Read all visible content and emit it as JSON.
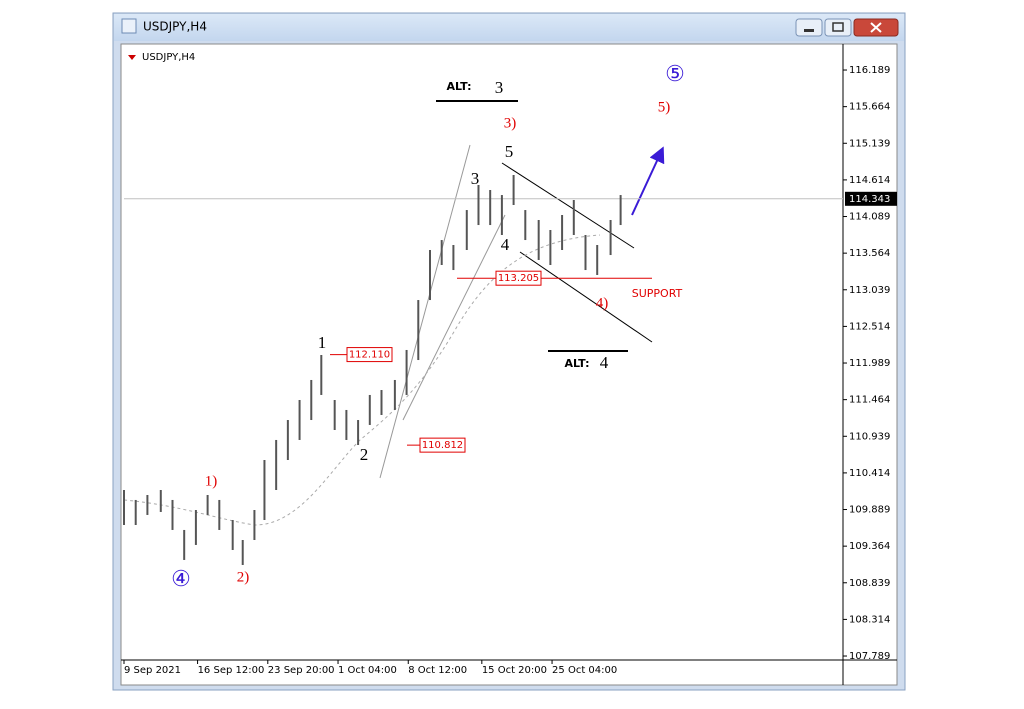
{
  "window_title": "USDJPY,H4",
  "chart_data": {
    "type": "hlbar",
    "title": "USDJPY,H4",
    "x": [
      0,
      7,
      14,
      22,
      29,
      36,
      43,
      50,
      57,
      65,
      71,
      78,
      84,
      91,
      98,
      105,
      112,
      118,
      126,
      133,
      140,
      147,
      154,
      162,
      169,
      176,
      183,
      190,
      197,
      205,
      212,
      219,
      226,
      233,
      240,
      248,
      255,
      262,
      269,
      276,
      283,
      291,
      297
    ],
    "high": [
      110.169,
      110.026,
      110.097,
      110.169,
      110.026,
      109.596,
      109.882,
      110.097,
      110.026,
      109.739,
      109.452,
      109.882,
      110.599,
      110.886,
      111.172,
      111.459,
      111.746,
      112.104,
      111.459,
      111.316,
      111.172,
      111.531,
      111.602,
      111.746,
      112.176,
      112.892,
      113.609,
      113.752,
      113.681,
      114.182,
      114.541,
      114.469,
      114.397,
      114.684,
      114.182,
      114.039,
      113.896,
      114.111,
      114.326,
      113.824,
      113.681,
      114.039,
      114.397
    ],
    "low": [
      109.667,
      109.667,
      109.811,
      109.854,
      109.596,
      109.166,
      109.381,
      109.811,
      109.596,
      109.309,
      109.094,
      109.452,
      109.739,
      110.169,
      110.599,
      110.886,
      111.172,
      111.531,
      111.029,
      110.886,
      110.814,
      111.101,
      111.244,
      111.316,
      111.531,
      112.032,
      112.892,
      113.394,
      113.322,
      113.609,
      113.967,
      113.967,
      113.824,
      114.254,
      113.752,
      113.466,
      113.394,
      113.609,
      113.824,
      113.322,
      113.251,
      113.537,
      113.967
    ],
    "color": "#555555",
    "xlim": [
      0,
      430
    ],
    "xticks": [
      {
        "value": 0,
        "label": "9 Sep 2021"
      },
      {
        "value": 44,
        "label": "16 Sep 12:00"
      },
      {
        "value": 86,
        "label": "23 Sep 20:00"
      },
      {
        "value": 128,
        "label": "1 Oct 04:00"
      },
      {
        "value": 170,
        "label": "8 Oct 12:00"
      },
      {
        "value": 214,
        "label": "15 Oct 20:00"
      },
      {
        "value": 256,
        "label": "25 Oct 04:00"
      }
    ],
    "ylim": [
      107.732,
      116.519
    ],
    "yticks": [
      116.189,
      115.664,
      115.139,
      114.614,
      114.089,
      113.564,
      113.039,
      112.514,
      111.989,
      111.464,
      110.939,
      110.414,
      109.889,
      109.364,
      108.839,
      108.314,
      107.789
    ],
    "current_price": 114.343,
    "levels": [
      {
        "value": 112.11,
        "label": "112.110"
      },
      110.812,
      113.205
    ],
    "support_label": "SUPPORT",
    "annotations": [
      "1",
      "2",
      "3",
      "4",
      "5",
      "3)",
      "4)",
      "5)",
      "1)",
      "2)",
      "④",
      "⑤",
      "ALT:",
      "3",
      "ALT:",
      "4"
    ]
  }
}
